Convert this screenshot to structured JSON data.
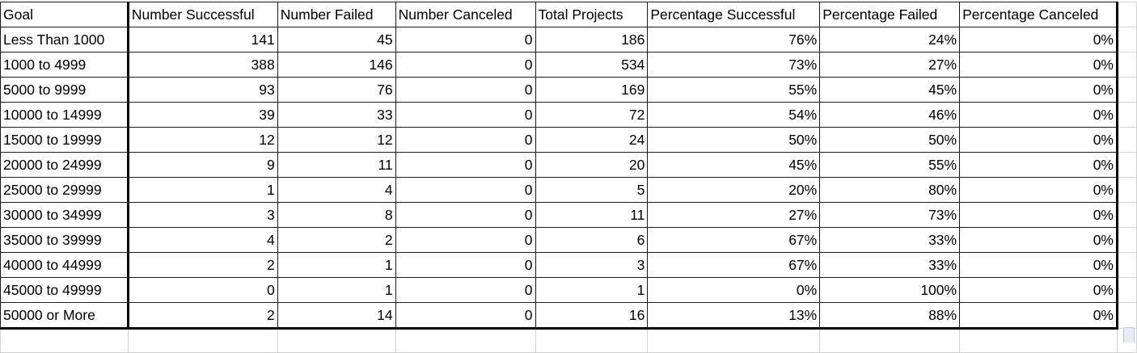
{
  "headers": [
    "Goal",
    "Number Successful",
    "Number Failed",
    "Number Canceled",
    "Total Projects",
    "Percentage Successful",
    "Percentage Failed",
    "Percentage Canceled"
  ],
  "rows": [
    [
      "Less Than 1000",
      "141",
      "45",
      "0",
      "186",
      "76%",
      "24%",
      "0%"
    ],
    [
      "1000 to 4999",
      "388",
      "146",
      "0",
      "534",
      "73%",
      "27%",
      "0%"
    ],
    [
      "5000 to 9999",
      "93",
      "76",
      "0",
      "169",
      "55%",
      "45%",
      "0%"
    ],
    [
      "10000 to 14999",
      "39",
      "33",
      "0",
      "72",
      "54%",
      "46%",
      "0%"
    ],
    [
      "15000 to 19999",
      "12",
      "12",
      "0",
      "24",
      "50%",
      "50%",
      "0%"
    ],
    [
      "20000 to 24999",
      "9",
      "11",
      "0",
      "20",
      "45%",
      "55%",
      "0%"
    ],
    [
      "25000 to 29999",
      "1",
      "4",
      "0",
      "5",
      "20%",
      "80%",
      "0%"
    ],
    [
      "30000 to 34999",
      "3",
      "8",
      "0",
      "11",
      "27%",
      "73%",
      "0%"
    ],
    [
      "35000 to 39999",
      "4",
      "2",
      "0",
      "6",
      "67%",
      "33%",
      "0%"
    ],
    [
      "40000 to 44999",
      "2",
      "1",
      "0",
      "3",
      "67%",
      "33%",
      "0%"
    ],
    [
      "45000 to 49999",
      "0",
      "1",
      "0",
      "1",
      "0%",
      "100%",
      "0%"
    ],
    [
      "50000 or More",
      "2",
      "14",
      "0",
      "16",
      "13%",
      "88%",
      "0%"
    ]
  ]
}
